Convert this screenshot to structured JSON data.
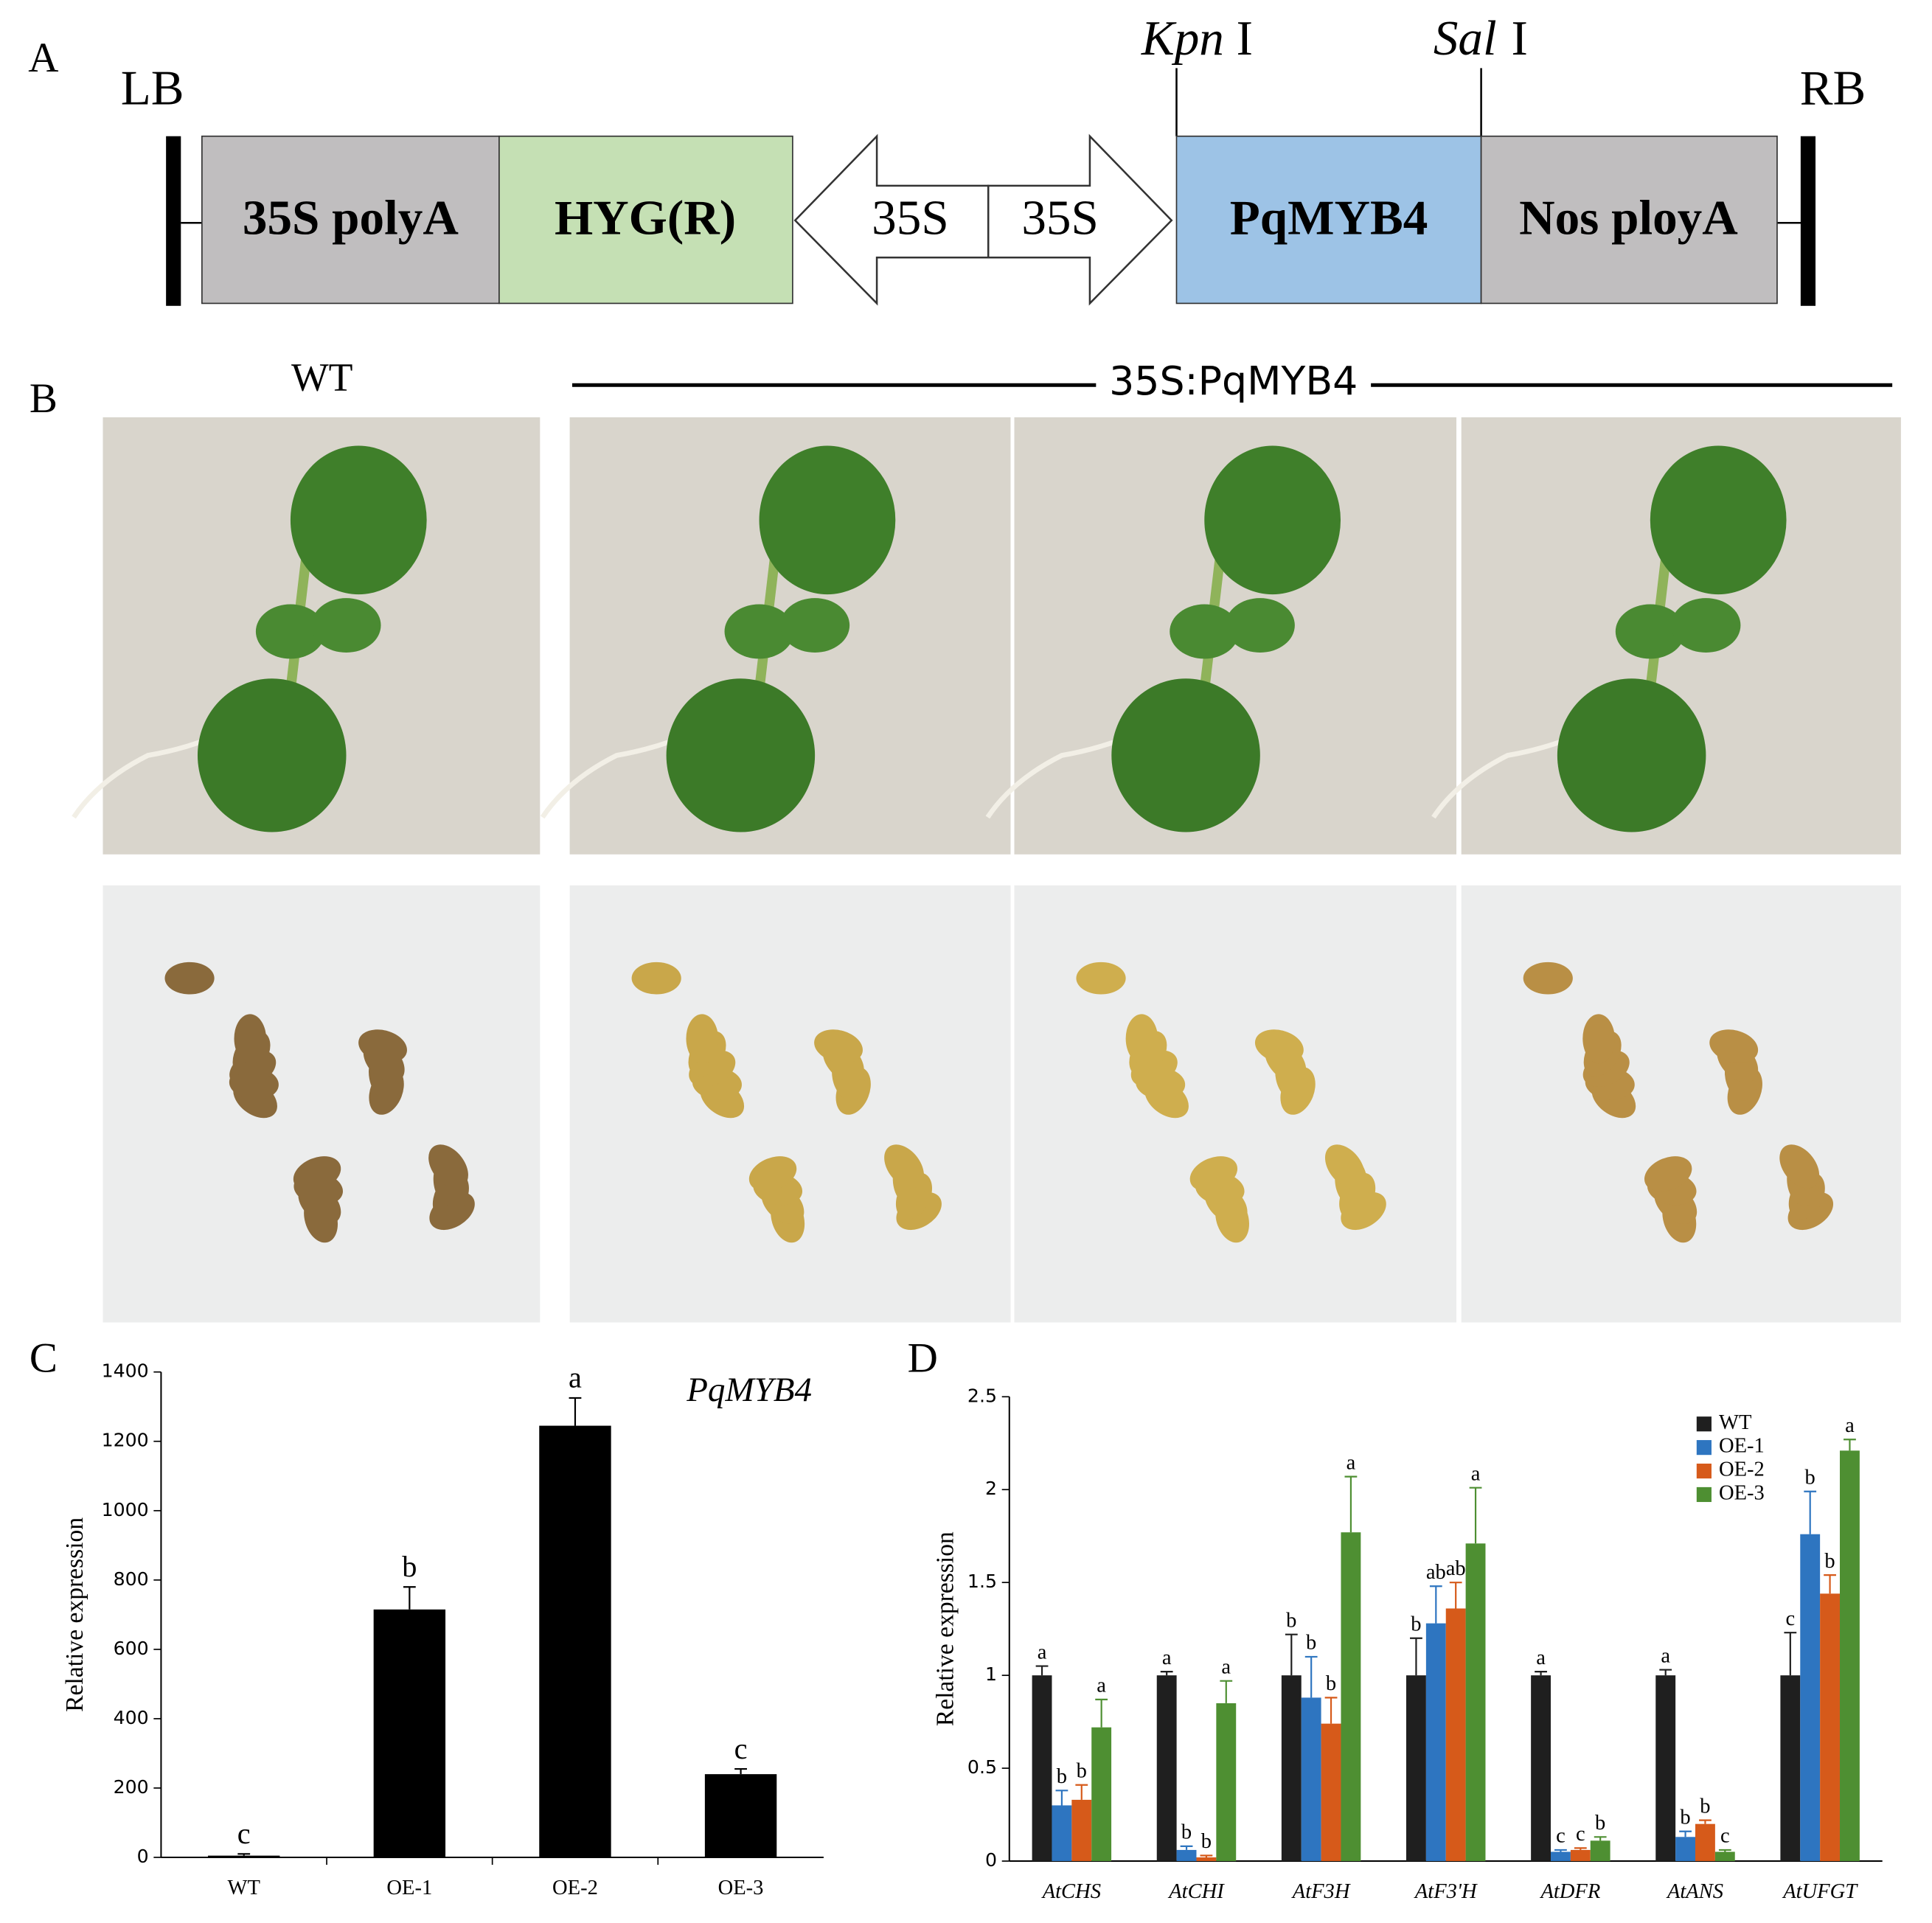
{
  "panels": {
    "a": "A",
    "b": "B",
    "c": "C",
    "d": "D"
  },
  "diagram": {
    "left_border": "LB",
    "right_border": "RB",
    "site_1": "Kpn",
    "site_1_suffix": "I",
    "site_2": "Sal",
    "site_2_suffix": "I",
    "elements": [
      "35S polyA",
      "HYG(R)",
      "35S",
      "35S",
      "PqMYB4",
      "Nos ployA"
    ]
  },
  "photos": {
    "control": "WT",
    "transgenic": "35S:PqMYB4"
  },
  "chart_data": [
    {
      "type": "bar",
      "annotation": "PqMYB4",
      "y_label": "Relative expression",
      "categories": [
        "WT",
        "OE-1",
        "OE-2",
        "OE-3"
      ],
      "values": [
        5,
        715,
        1245,
        240
      ],
      "errors": [
        5,
        65,
        80,
        15
      ],
      "letters": [
        "c",
        "b",
        "a",
        "c"
      ],
      "color": "#000000",
      "ylim": [
        0,
        1400
      ],
      "yticks": [
        0,
        200,
        400,
        600,
        800,
        1000,
        1200,
        1400
      ]
    },
    {
      "type": "bar",
      "y_label": "Relative expression",
      "categories": [
        "AtCHS",
        "AtCHI",
        "AtF3H",
        "AtF3'H",
        "AtDFR",
        "AtANS",
        "AtUFGT"
      ],
      "series": [
        {
          "name": "WT",
          "color": "#1f1f1f",
          "values": [
            1,
            1,
            1,
            1,
            1,
            1,
            1
          ],
          "errors": [
            0.05,
            0.02,
            0.22,
            0.2,
            0.02,
            0.03,
            0.23
          ],
          "letters": [
            "a",
            "a",
            "b",
            "b",
            "a",
            "a",
            "c"
          ]
        },
        {
          "name": "OE-1",
          "color": "#2e75c0",
          "values": [
            0.3,
            0.06,
            0.88,
            1.28,
            0.05,
            0.13,
            1.76
          ],
          "errors": [
            0.08,
            0.02,
            0.22,
            0.2,
            0.01,
            0.03,
            0.23
          ],
          "letters": [
            "b",
            "b",
            "b",
            "ab",
            "c",
            "b",
            "b"
          ]
        },
        {
          "name": "OE-2",
          "color": "#d65a1a",
          "values": [
            0.33,
            0.02,
            0.74,
            1.36,
            0.06,
            0.2,
            1.44
          ],
          "errors": [
            0.08,
            0.01,
            0.14,
            0.14,
            0.01,
            0.02,
            0.1
          ],
          "letters": [
            "b",
            "b",
            "b",
            "ab",
            "c",
            "b",
            "b"
          ]
        },
        {
          "name": "OE-3",
          "color": "#4e8f32",
          "values": [
            0.72,
            0.85,
            1.77,
            1.71,
            0.11,
            0.05,
            2.21
          ],
          "errors": [
            0.15,
            0.12,
            0.3,
            0.3,
            0.02,
            0.01,
            0.06
          ],
          "letters": [
            "a",
            "a",
            "a",
            "a",
            "b",
            "c",
            "a"
          ]
        }
      ],
      "ylim": [
        0,
        2.5
      ],
      "yticks": [
        0,
        0.5,
        1,
        1.5,
        2,
        2.5
      ],
      "legend": "top-right"
    }
  ]
}
